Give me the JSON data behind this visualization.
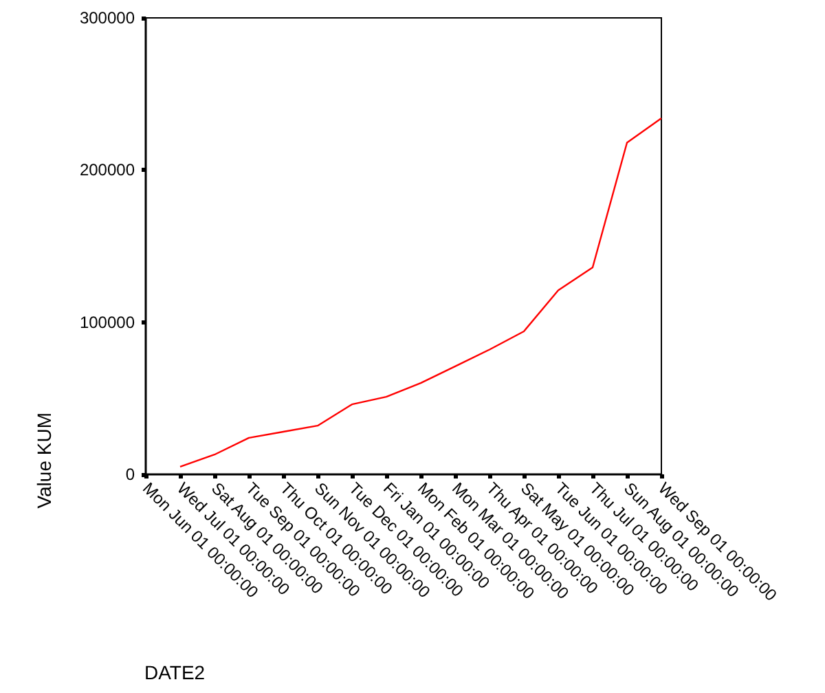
{
  "chart_data": {
    "type": "line",
    "xlabel": "DATE2",
    "ylabel": "Value KUM",
    "categories": [
      "Mon Jun 01 00:00:00",
      "Wed Jul 01 00:00:00",
      "Sat Aug 01 00:00:00",
      "Tue Sep 01 00:00:00",
      "Thu Oct 01 00:00:00",
      "Sun Nov 01 00:00:00",
      "Tue Dec 01 00:00:00",
      "Fri Jan 01 00:00:00",
      "Mon Feb 01 00:00:00",
      "Mon Mar 01 00:00:00",
      "Thu Apr 01 00:00:00",
      "Sat May 01 00:00:00",
      "Tue Jun 01 00:00:00",
      "Thu Jul 01 00:00:00",
      "Sun Aug 01 00:00:00",
      "Wed Sep 01 00:00:00"
    ],
    "series": [
      {
        "color": "#ff0000",
        "values": [
          null,
          5000,
          13000,
          24000,
          28000,
          32000,
          46000,
          51000,
          60000,
          71000,
          82000,
          94000,
          121000,
          136000,
          218000,
          234000
        ]
      }
    ],
    "ylim": [
      0,
      300000
    ],
    "yticks": [
      0,
      100000,
      200000,
      300000
    ],
    "grid": false,
    "marker": "none",
    "line_style": "solid"
  }
}
